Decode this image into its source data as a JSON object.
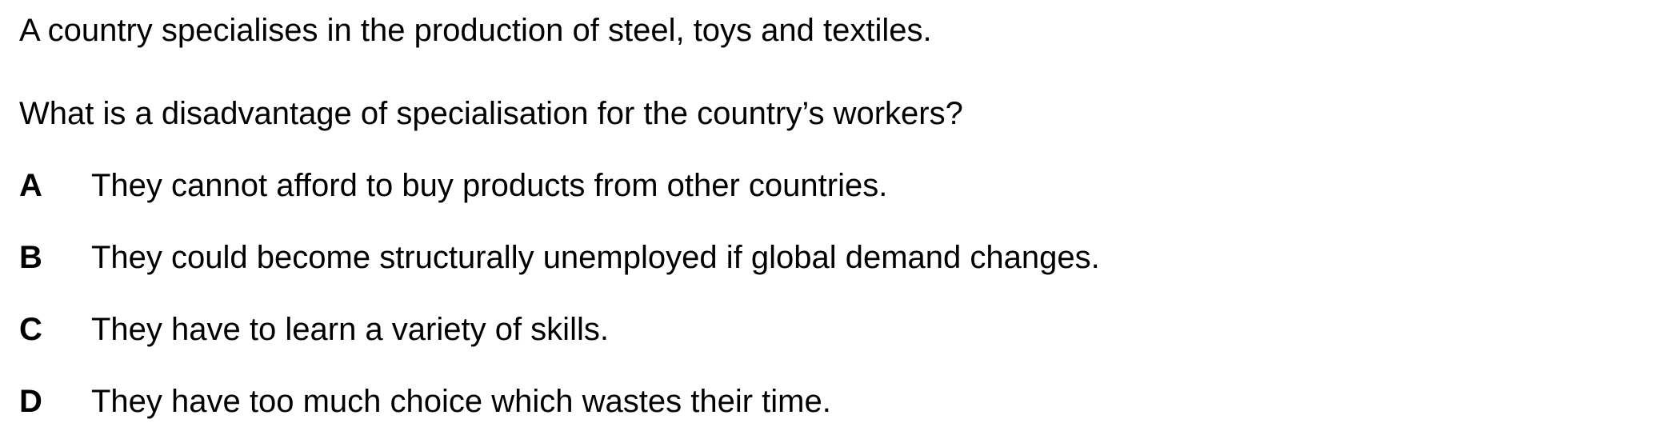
{
  "question": {
    "stem": [
      "A country specialises in the production of steel, toys and textiles.",
      "What is a disadvantage of specialisation for the country’s workers?"
    ],
    "options": [
      {
        "letter": "A",
        "text": "They cannot afford to buy products from other countries."
      },
      {
        "letter": "B",
        "text": "They could become structurally unemployed if global demand changes."
      },
      {
        "letter": "C",
        "text": "They have to learn a variety of skills."
      },
      {
        "letter": "D",
        "text": "They have too much choice which wastes their time."
      }
    ]
  }
}
